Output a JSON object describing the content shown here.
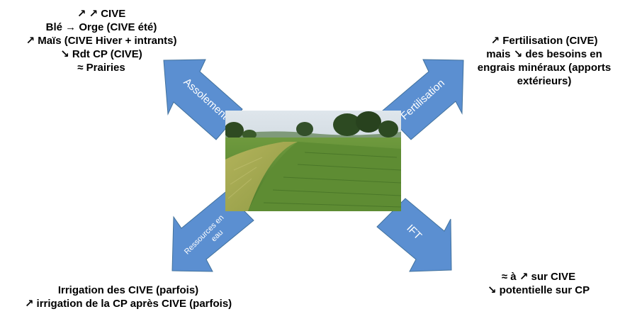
{
  "colors": {
    "arrow_fill": "#5b8fd1",
    "arrow_stroke": "#41719c",
    "text": "#000000",
    "arrow_label": "#ffffff"
  },
  "arrows": {
    "assolement": "Assolement",
    "fertilisation": "Fertilisation",
    "ressources_line1": "Ressources en",
    "ressources_line2": "eau",
    "ift": "IFT"
  },
  "blocks": {
    "assolement": [
      "↗ ↗ CIVE",
      "Blé → Orge (CIVE été)",
      "↗ Maïs (CIVE Hiver + intrants)",
      "↘ Rdt CP (CIVE)",
      "≈ Prairies"
    ],
    "fertilisation": [
      "↗ Fertilisation (CIVE)",
      "mais ↘ des besoins en",
      "engrais minéraux (apports",
      "extérieurs)"
    ],
    "ressources": [
      "Irrigation des CIVE (parfois)",
      "↗ irrigation de la CP après CIVE (parfois)"
    ],
    "ift": [
      "≈ à ↗ sur CIVE",
      "↘ potentielle sur CP"
    ]
  }
}
